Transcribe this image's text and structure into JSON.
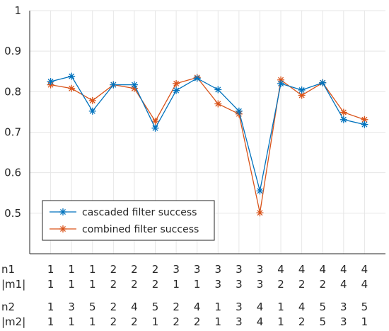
{
  "chart_data": {
    "type": "line",
    "x": [
      1,
      2,
      3,
      4,
      5,
      6,
      7,
      8,
      9,
      10,
      11,
      12,
      13,
      14,
      15,
      16
    ],
    "xlim": [
      0,
      17
    ],
    "ylim": [
      0.4,
      1.0
    ],
    "yticks": [
      "0.5",
      "0.6",
      "0.7",
      "0.8",
      "0.9",
      "1"
    ],
    "ytick_values": [
      0.5,
      0.6,
      0.7,
      0.8,
      0.9,
      1.0
    ],
    "grid": true,
    "legend_position": "bottom-left",
    "series": [
      {
        "name": "cascaded filter success",
        "color": "#0072BD",
        "marker": "asterisk",
        "values": [
          0.825,
          0.838,
          0.752,
          0.817,
          0.817,
          0.71,
          0.803,
          0.833,
          0.805,
          0.752,
          0.555,
          0.82,
          0.804,
          0.822,
          0.731,
          0.719
        ]
      },
      {
        "name": "combined filter success",
        "color": "#D95319",
        "marker": "asterisk",
        "values": [
          0.817,
          0.808,
          0.778,
          0.817,
          0.808,
          0.727,
          0.82,
          0.835,
          0.77,
          0.745,
          0.501,
          0.829,
          0.791,
          0.822,
          0.749,
          0.731
        ]
      }
    ],
    "parameter_rows": [
      {
        "label": "n1",
        "values": [
          "1",
          "1",
          "1",
          "2",
          "2",
          "2",
          "3",
          "3",
          "3",
          "3",
          "3",
          "4",
          "4",
          "4",
          "4",
          "4"
        ]
      },
      {
        "label": "|m1|",
        "values": [
          "1",
          "1",
          "1",
          "2",
          "2",
          "2",
          "1",
          "1",
          "3",
          "3",
          "3",
          "2",
          "2",
          "2",
          "4",
          "4"
        ]
      },
      {
        "label": "n2",
        "values": [
          "1",
          "3",
          "5",
          "2",
          "4",
          "5",
          "2",
          "4",
          "1",
          "3",
          "4",
          "1",
          "4",
          "5",
          "3",
          "5"
        ]
      },
      {
        "label": "|m2|",
        "values": [
          "1",
          "1",
          "1",
          "2",
          "2",
          "1",
          "2",
          "2",
          "1",
          "3",
          "4",
          "1",
          "2",
          "5",
          "3",
          "1"
        ]
      }
    ]
  }
}
